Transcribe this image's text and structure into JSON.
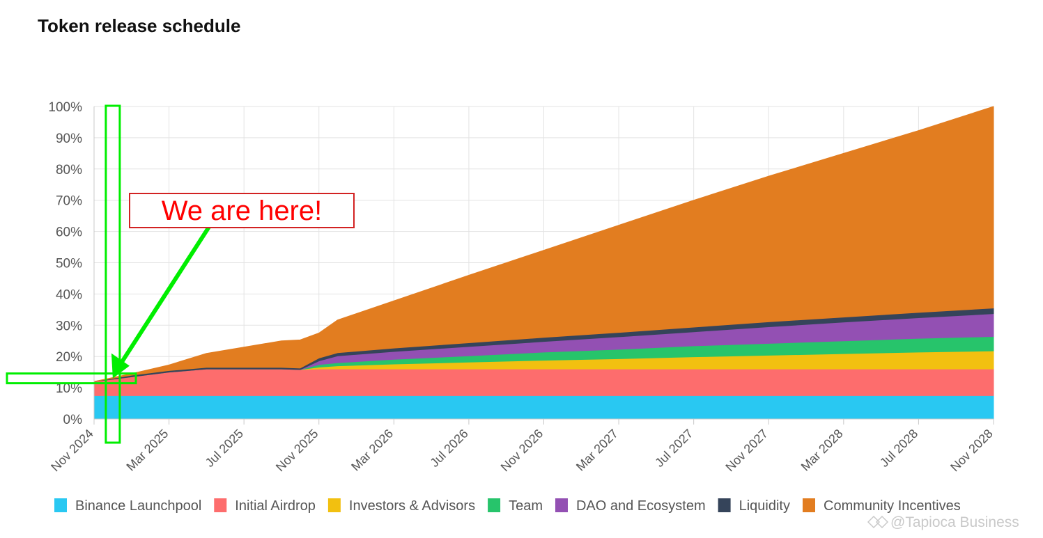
{
  "page": {
    "title": "Token release schedule"
  },
  "chart_data": {
    "type": "area",
    "stacked": true,
    "x": [
      "Nov 2024",
      "Jan 2025",
      "Mar 2025",
      "May 2025",
      "Jul 2025",
      "Sep 2025",
      "Oct 2025",
      "Nov 2025",
      "Dec 2025",
      "Mar 2026",
      "Jul 2026",
      "Nov 2026",
      "Mar 2027",
      "Jul 2027",
      "Nov 2027",
      "Mar 2028",
      "Jul 2028",
      "Nov 2028"
    ],
    "x_ticks": [
      "Nov 2024",
      "Mar 2025",
      "Jul 2025",
      "Nov 2025",
      "Mar 2026",
      "Jul 2026",
      "Nov 2026",
      "Mar 2027",
      "Jul 2027",
      "Nov 2027",
      "Mar 2028",
      "Jul 2028",
      "Nov 2028"
    ],
    "y_ticks": [
      "0%",
      "10%",
      "20%",
      "30%",
      "40%",
      "50%",
      "60%",
      "70%",
      "80%",
      "90%",
      "100%"
    ],
    "ylim": [
      0,
      100
    ],
    "grid": true,
    "legend_position": "bottom",
    "series": [
      {
        "name": "Binance Launchpool",
        "color": "#29c8f2",
        "values": [
          7.5,
          7.5,
          7.5,
          7.5,
          7.5,
          7.5,
          7.5,
          7.5,
          7.5,
          7.5,
          7.5,
          7.5,
          7.5,
          7.5,
          7.5,
          7.5,
          7.5,
          7.5
        ]
      },
      {
        "name": "Initial Airdrop",
        "color": "#fd6d6d",
        "values": [
          4.5,
          6.0,
          7.5,
          8.5,
          8.5,
          8.5,
          8.3,
          8.5,
          8.5,
          8.5,
          8.5,
          8.5,
          8.5,
          8.5,
          8.5,
          8.5,
          8.5,
          8.5
        ]
      },
      {
        "name": "Investors & Advisors",
        "color": "#f2c010",
        "values": [
          0,
          0,
          0,
          0,
          0,
          0,
          0,
          0.6,
          1.0,
          1.6,
          2.2,
          2.8,
          3.3,
          3.9,
          4.4,
          4.9,
          5.4,
          5.8
        ]
      },
      {
        "name": "Team",
        "color": "#27c46b",
        "values": [
          0,
          0,
          0,
          0,
          0,
          0,
          0,
          0.8,
          1.0,
          1.5,
          2.0,
          2.6,
          3.0,
          3.5,
          3.8,
          4.1,
          4.4,
          4.6
        ]
      },
      {
        "name": "DAO and Ecosystem",
        "color": "#9350b3",
        "values": [
          0,
          0,
          0,
          0,
          0,
          0,
          0,
          1.2,
          2.2,
          2.5,
          3.0,
          3.4,
          4.0,
          4.5,
          5.3,
          6.0,
          6.6,
          7.3
        ]
      },
      {
        "name": "Liquidity",
        "color": "#35445a",
        "values": [
          0,
          0.5,
          0.5,
          0.5,
          0.5,
          0.5,
          0.5,
          0.9,
          1.0,
          1.1,
          1.2,
          1.3,
          1.4,
          1.5,
          1.6,
          1.6,
          1.7,
          1.8
        ]
      },
      {
        "name": "Community Incentives",
        "color": "#e27d20",
        "values": [
          0,
          0.5,
          1.8,
          4.5,
          6.5,
          8.5,
          9.0,
          8.0,
          10.5,
          15.1,
          21.6,
          27.9,
          34.3,
          40.6,
          46.6,
          52.4,
          58.2,
          64.5
        ]
      }
    ],
    "annotation": {
      "text": "We are here!",
      "color": "#ff0000",
      "highlight_color": "#00ee00",
      "x": "Dec 2024",
      "y": 13
    }
  },
  "watermark": {
    "text": "@Tapioca Business",
    "icon": "binance-square-icon"
  }
}
